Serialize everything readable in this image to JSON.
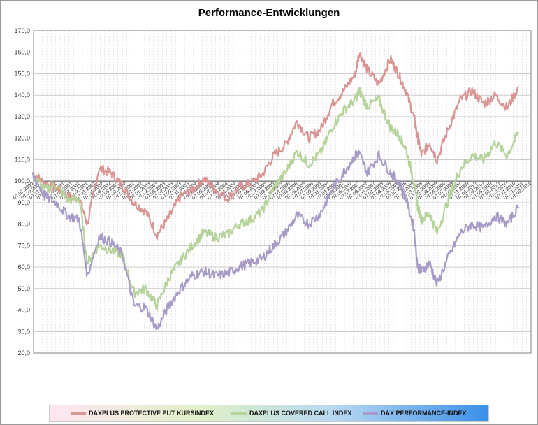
{
  "chart_data": {
    "type": "line",
    "title": "Performance-Entwicklungen",
    "xlabel": "",
    "ylabel": "",
    "ylim": [
      20,
      170
    ],
    "yticks": [
      "20,0",
      "30,0",
      "40,0",
      "50,0",
      "60,0",
      "70,0",
      "80,0",
      "90,0",
      "100,0",
      "110,0",
      "120,0",
      "130,0",
      "140,0",
      "150,0",
      "160,0",
      "170,0"
    ],
    "xlim": [
      "2000-07-07",
      "2011-03-07"
    ],
    "x_tick_start": "2000-07-07",
    "x_tick_step_months": 2,
    "grid": true,
    "legend_position": "bottom",
    "series": [
      {
        "name": "DAXPLUS PROTECTIVE PUT KURSINDEX",
        "color": "#d99594",
        "x": [
          "2000-07",
          "2000-10",
          "2001-01",
          "2001-04",
          "2001-07",
          "2001-09",
          "2001-12",
          "2002-03",
          "2002-06",
          "2002-09",
          "2002-12",
          "2003-03",
          "2003-06",
          "2003-09",
          "2003-12",
          "2004-03",
          "2004-06",
          "2004-09",
          "2004-12",
          "2005-03",
          "2005-06",
          "2005-09",
          "2005-12",
          "2006-03",
          "2006-06",
          "2006-09",
          "2006-12",
          "2007-03",
          "2007-06",
          "2007-07",
          "2007-09",
          "2007-12",
          "2008-03",
          "2008-05",
          "2008-07",
          "2008-09",
          "2008-10",
          "2008-11",
          "2009-01",
          "2009-03",
          "2009-06",
          "2009-09",
          "2009-12",
          "2010-03",
          "2010-06",
          "2010-09",
          "2010-12"
        ],
        "y": [
          104,
          99,
          97,
          93,
          92,
          80,
          106,
          104,
          98,
          90,
          86,
          75,
          83,
          93,
          96,
          101,
          96,
          92,
          97,
          99,
          103,
          112,
          117,
          128,
          120,
          124,
          136,
          142,
          150,
          160,
          152,
          145,
          157,
          150,
          142,
          130,
          120,
          112,
          118,
          110,
          125,
          138,
          142,
          136,
          140,
          134,
          144
        ]
      },
      {
        "name": "DAXPLUS COVERED CALL INDEX",
        "color": "#b5d39a",
        "x": [
          "2000-07",
          "2000-10",
          "2001-01",
          "2001-04",
          "2001-07",
          "2001-09",
          "2001-12",
          "2002-03",
          "2002-06",
          "2002-09",
          "2002-12",
          "2003-03",
          "2003-06",
          "2003-09",
          "2003-12",
          "2004-03",
          "2004-06",
          "2004-09",
          "2004-12",
          "2005-03",
          "2005-06",
          "2005-09",
          "2005-12",
          "2006-03",
          "2006-06",
          "2006-09",
          "2006-12",
          "2007-03",
          "2007-06",
          "2007-07",
          "2007-09",
          "2007-12",
          "2008-03",
          "2008-05",
          "2008-07",
          "2008-09",
          "2008-10",
          "2008-11",
          "2009-01",
          "2009-03",
          "2009-06",
          "2009-09",
          "2009-12",
          "2010-03",
          "2010-06",
          "2010-09",
          "2010-12"
        ],
        "y": [
          103,
          96,
          98,
          91,
          92,
          62,
          70,
          68,
          66,
          48,
          50,
          42,
          55,
          63,
          70,
          76,
          74,
          75,
          80,
          82,
          86,
          97,
          104,
          114,
          108,
          113,
          125,
          133,
          138,
          142,
          135,
          138,
          125,
          122,
          115,
          100,
          88,
          82,
          85,
          76,
          92,
          106,
          112,
          110,
          118,
          112,
          123
        ]
      },
      {
        "name": "DAX PERFORMANCE-INDEX",
        "color": "#a99bc7",
        "x": [
          "2000-07",
          "2000-10",
          "2001-01",
          "2001-04",
          "2001-07",
          "2001-09",
          "2001-12",
          "2002-03",
          "2002-06",
          "2002-09",
          "2002-12",
          "2003-03",
          "2003-06",
          "2003-09",
          "2003-12",
          "2004-03",
          "2004-06",
          "2004-09",
          "2004-12",
          "2005-03",
          "2005-06",
          "2005-09",
          "2005-12",
          "2006-03",
          "2006-06",
          "2006-09",
          "2006-12",
          "2007-03",
          "2007-06",
          "2007-07",
          "2007-09",
          "2007-12",
          "2008-03",
          "2008-05",
          "2008-07",
          "2008-09",
          "2008-10",
          "2008-11",
          "2009-01",
          "2009-03",
          "2009-06",
          "2009-09",
          "2009-12",
          "2010-03",
          "2010-06",
          "2010-09",
          "2010-12"
        ],
        "y": [
          103,
          93,
          90,
          84,
          82,
          56,
          74,
          72,
          66,
          42,
          41,
          31,
          42,
          50,
          56,
          58,
          56,
          57,
          60,
          62,
          64,
          70,
          76,
          84,
          80,
          85,
          96,
          104,
          112,
          113,
          104,
          112,
          104,
          100,
          92,
          78,
          60,
          58,
          62,
          52,
          65,
          76,
          80,
          78,
          84,
          80,
          88
        ]
      }
    ]
  }
}
